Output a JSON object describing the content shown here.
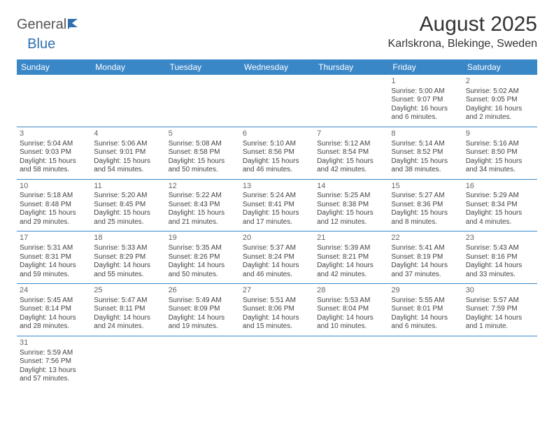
{
  "logo": {
    "part1": "General",
    "part2": "Blue"
  },
  "title": "August 2025",
  "location": "Karlskrona, Blekinge, Sweden",
  "colors": {
    "header_bg": "#3a87c8",
    "header_fg": "#ffffff",
    "cell_border": "#3a87c8",
    "text": "#444444",
    "logo_gray": "#555555",
    "logo_blue": "#2f6fb0"
  },
  "weekdays": [
    "Sunday",
    "Monday",
    "Tuesday",
    "Wednesday",
    "Thursday",
    "Friday",
    "Saturday"
  ],
  "weeks": [
    [
      null,
      null,
      null,
      null,
      null,
      {
        "n": "1",
        "sr": "Sunrise: 5:00 AM",
        "ss": "Sunset: 9:07 PM",
        "d1": "Daylight: 16 hours",
        "d2": "and 6 minutes."
      },
      {
        "n": "2",
        "sr": "Sunrise: 5:02 AM",
        "ss": "Sunset: 9:05 PM",
        "d1": "Daylight: 16 hours",
        "d2": "and 2 minutes."
      }
    ],
    [
      {
        "n": "3",
        "sr": "Sunrise: 5:04 AM",
        "ss": "Sunset: 9:03 PM",
        "d1": "Daylight: 15 hours",
        "d2": "and 58 minutes."
      },
      {
        "n": "4",
        "sr": "Sunrise: 5:06 AM",
        "ss": "Sunset: 9:01 PM",
        "d1": "Daylight: 15 hours",
        "d2": "and 54 minutes."
      },
      {
        "n": "5",
        "sr": "Sunrise: 5:08 AM",
        "ss": "Sunset: 8:58 PM",
        "d1": "Daylight: 15 hours",
        "d2": "and 50 minutes."
      },
      {
        "n": "6",
        "sr": "Sunrise: 5:10 AM",
        "ss": "Sunset: 8:56 PM",
        "d1": "Daylight: 15 hours",
        "d2": "and 46 minutes."
      },
      {
        "n": "7",
        "sr": "Sunrise: 5:12 AM",
        "ss": "Sunset: 8:54 PM",
        "d1": "Daylight: 15 hours",
        "d2": "and 42 minutes."
      },
      {
        "n": "8",
        "sr": "Sunrise: 5:14 AM",
        "ss": "Sunset: 8:52 PM",
        "d1": "Daylight: 15 hours",
        "d2": "and 38 minutes."
      },
      {
        "n": "9",
        "sr": "Sunrise: 5:16 AM",
        "ss": "Sunset: 8:50 PM",
        "d1": "Daylight: 15 hours",
        "d2": "and 34 minutes."
      }
    ],
    [
      {
        "n": "10",
        "sr": "Sunrise: 5:18 AM",
        "ss": "Sunset: 8:48 PM",
        "d1": "Daylight: 15 hours",
        "d2": "and 29 minutes."
      },
      {
        "n": "11",
        "sr": "Sunrise: 5:20 AM",
        "ss": "Sunset: 8:45 PM",
        "d1": "Daylight: 15 hours",
        "d2": "and 25 minutes."
      },
      {
        "n": "12",
        "sr": "Sunrise: 5:22 AM",
        "ss": "Sunset: 8:43 PM",
        "d1": "Daylight: 15 hours",
        "d2": "and 21 minutes."
      },
      {
        "n": "13",
        "sr": "Sunrise: 5:24 AM",
        "ss": "Sunset: 8:41 PM",
        "d1": "Daylight: 15 hours",
        "d2": "and 17 minutes."
      },
      {
        "n": "14",
        "sr": "Sunrise: 5:25 AM",
        "ss": "Sunset: 8:38 PM",
        "d1": "Daylight: 15 hours",
        "d2": "and 12 minutes."
      },
      {
        "n": "15",
        "sr": "Sunrise: 5:27 AM",
        "ss": "Sunset: 8:36 PM",
        "d1": "Daylight: 15 hours",
        "d2": "and 8 minutes."
      },
      {
        "n": "16",
        "sr": "Sunrise: 5:29 AM",
        "ss": "Sunset: 8:34 PM",
        "d1": "Daylight: 15 hours",
        "d2": "and 4 minutes."
      }
    ],
    [
      {
        "n": "17",
        "sr": "Sunrise: 5:31 AM",
        "ss": "Sunset: 8:31 PM",
        "d1": "Daylight: 14 hours",
        "d2": "and 59 minutes."
      },
      {
        "n": "18",
        "sr": "Sunrise: 5:33 AM",
        "ss": "Sunset: 8:29 PM",
        "d1": "Daylight: 14 hours",
        "d2": "and 55 minutes."
      },
      {
        "n": "19",
        "sr": "Sunrise: 5:35 AM",
        "ss": "Sunset: 8:26 PM",
        "d1": "Daylight: 14 hours",
        "d2": "and 50 minutes."
      },
      {
        "n": "20",
        "sr": "Sunrise: 5:37 AM",
        "ss": "Sunset: 8:24 PM",
        "d1": "Daylight: 14 hours",
        "d2": "and 46 minutes."
      },
      {
        "n": "21",
        "sr": "Sunrise: 5:39 AM",
        "ss": "Sunset: 8:21 PM",
        "d1": "Daylight: 14 hours",
        "d2": "and 42 minutes."
      },
      {
        "n": "22",
        "sr": "Sunrise: 5:41 AM",
        "ss": "Sunset: 8:19 PM",
        "d1": "Daylight: 14 hours",
        "d2": "and 37 minutes."
      },
      {
        "n": "23",
        "sr": "Sunrise: 5:43 AM",
        "ss": "Sunset: 8:16 PM",
        "d1": "Daylight: 14 hours",
        "d2": "and 33 minutes."
      }
    ],
    [
      {
        "n": "24",
        "sr": "Sunrise: 5:45 AM",
        "ss": "Sunset: 8:14 PM",
        "d1": "Daylight: 14 hours",
        "d2": "and 28 minutes."
      },
      {
        "n": "25",
        "sr": "Sunrise: 5:47 AM",
        "ss": "Sunset: 8:11 PM",
        "d1": "Daylight: 14 hours",
        "d2": "and 24 minutes."
      },
      {
        "n": "26",
        "sr": "Sunrise: 5:49 AM",
        "ss": "Sunset: 8:09 PM",
        "d1": "Daylight: 14 hours",
        "d2": "and 19 minutes."
      },
      {
        "n": "27",
        "sr": "Sunrise: 5:51 AM",
        "ss": "Sunset: 8:06 PM",
        "d1": "Daylight: 14 hours",
        "d2": "and 15 minutes."
      },
      {
        "n": "28",
        "sr": "Sunrise: 5:53 AM",
        "ss": "Sunset: 8:04 PM",
        "d1": "Daylight: 14 hours",
        "d2": "and 10 minutes."
      },
      {
        "n": "29",
        "sr": "Sunrise: 5:55 AM",
        "ss": "Sunset: 8:01 PM",
        "d1": "Daylight: 14 hours",
        "d2": "and 6 minutes."
      },
      {
        "n": "30",
        "sr": "Sunrise: 5:57 AM",
        "ss": "Sunset: 7:59 PM",
        "d1": "Daylight: 14 hours",
        "d2": "and 1 minute."
      }
    ],
    [
      {
        "n": "31",
        "sr": "Sunrise: 5:59 AM",
        "ss": "Sunset: 7:56 PM",
        "d1": "Daylight: 13 hours",
        "d2": "and 57 minutes."
      },
      null,
      null,
      null,
      null,
      null,
      null
    ]
  ]
}
